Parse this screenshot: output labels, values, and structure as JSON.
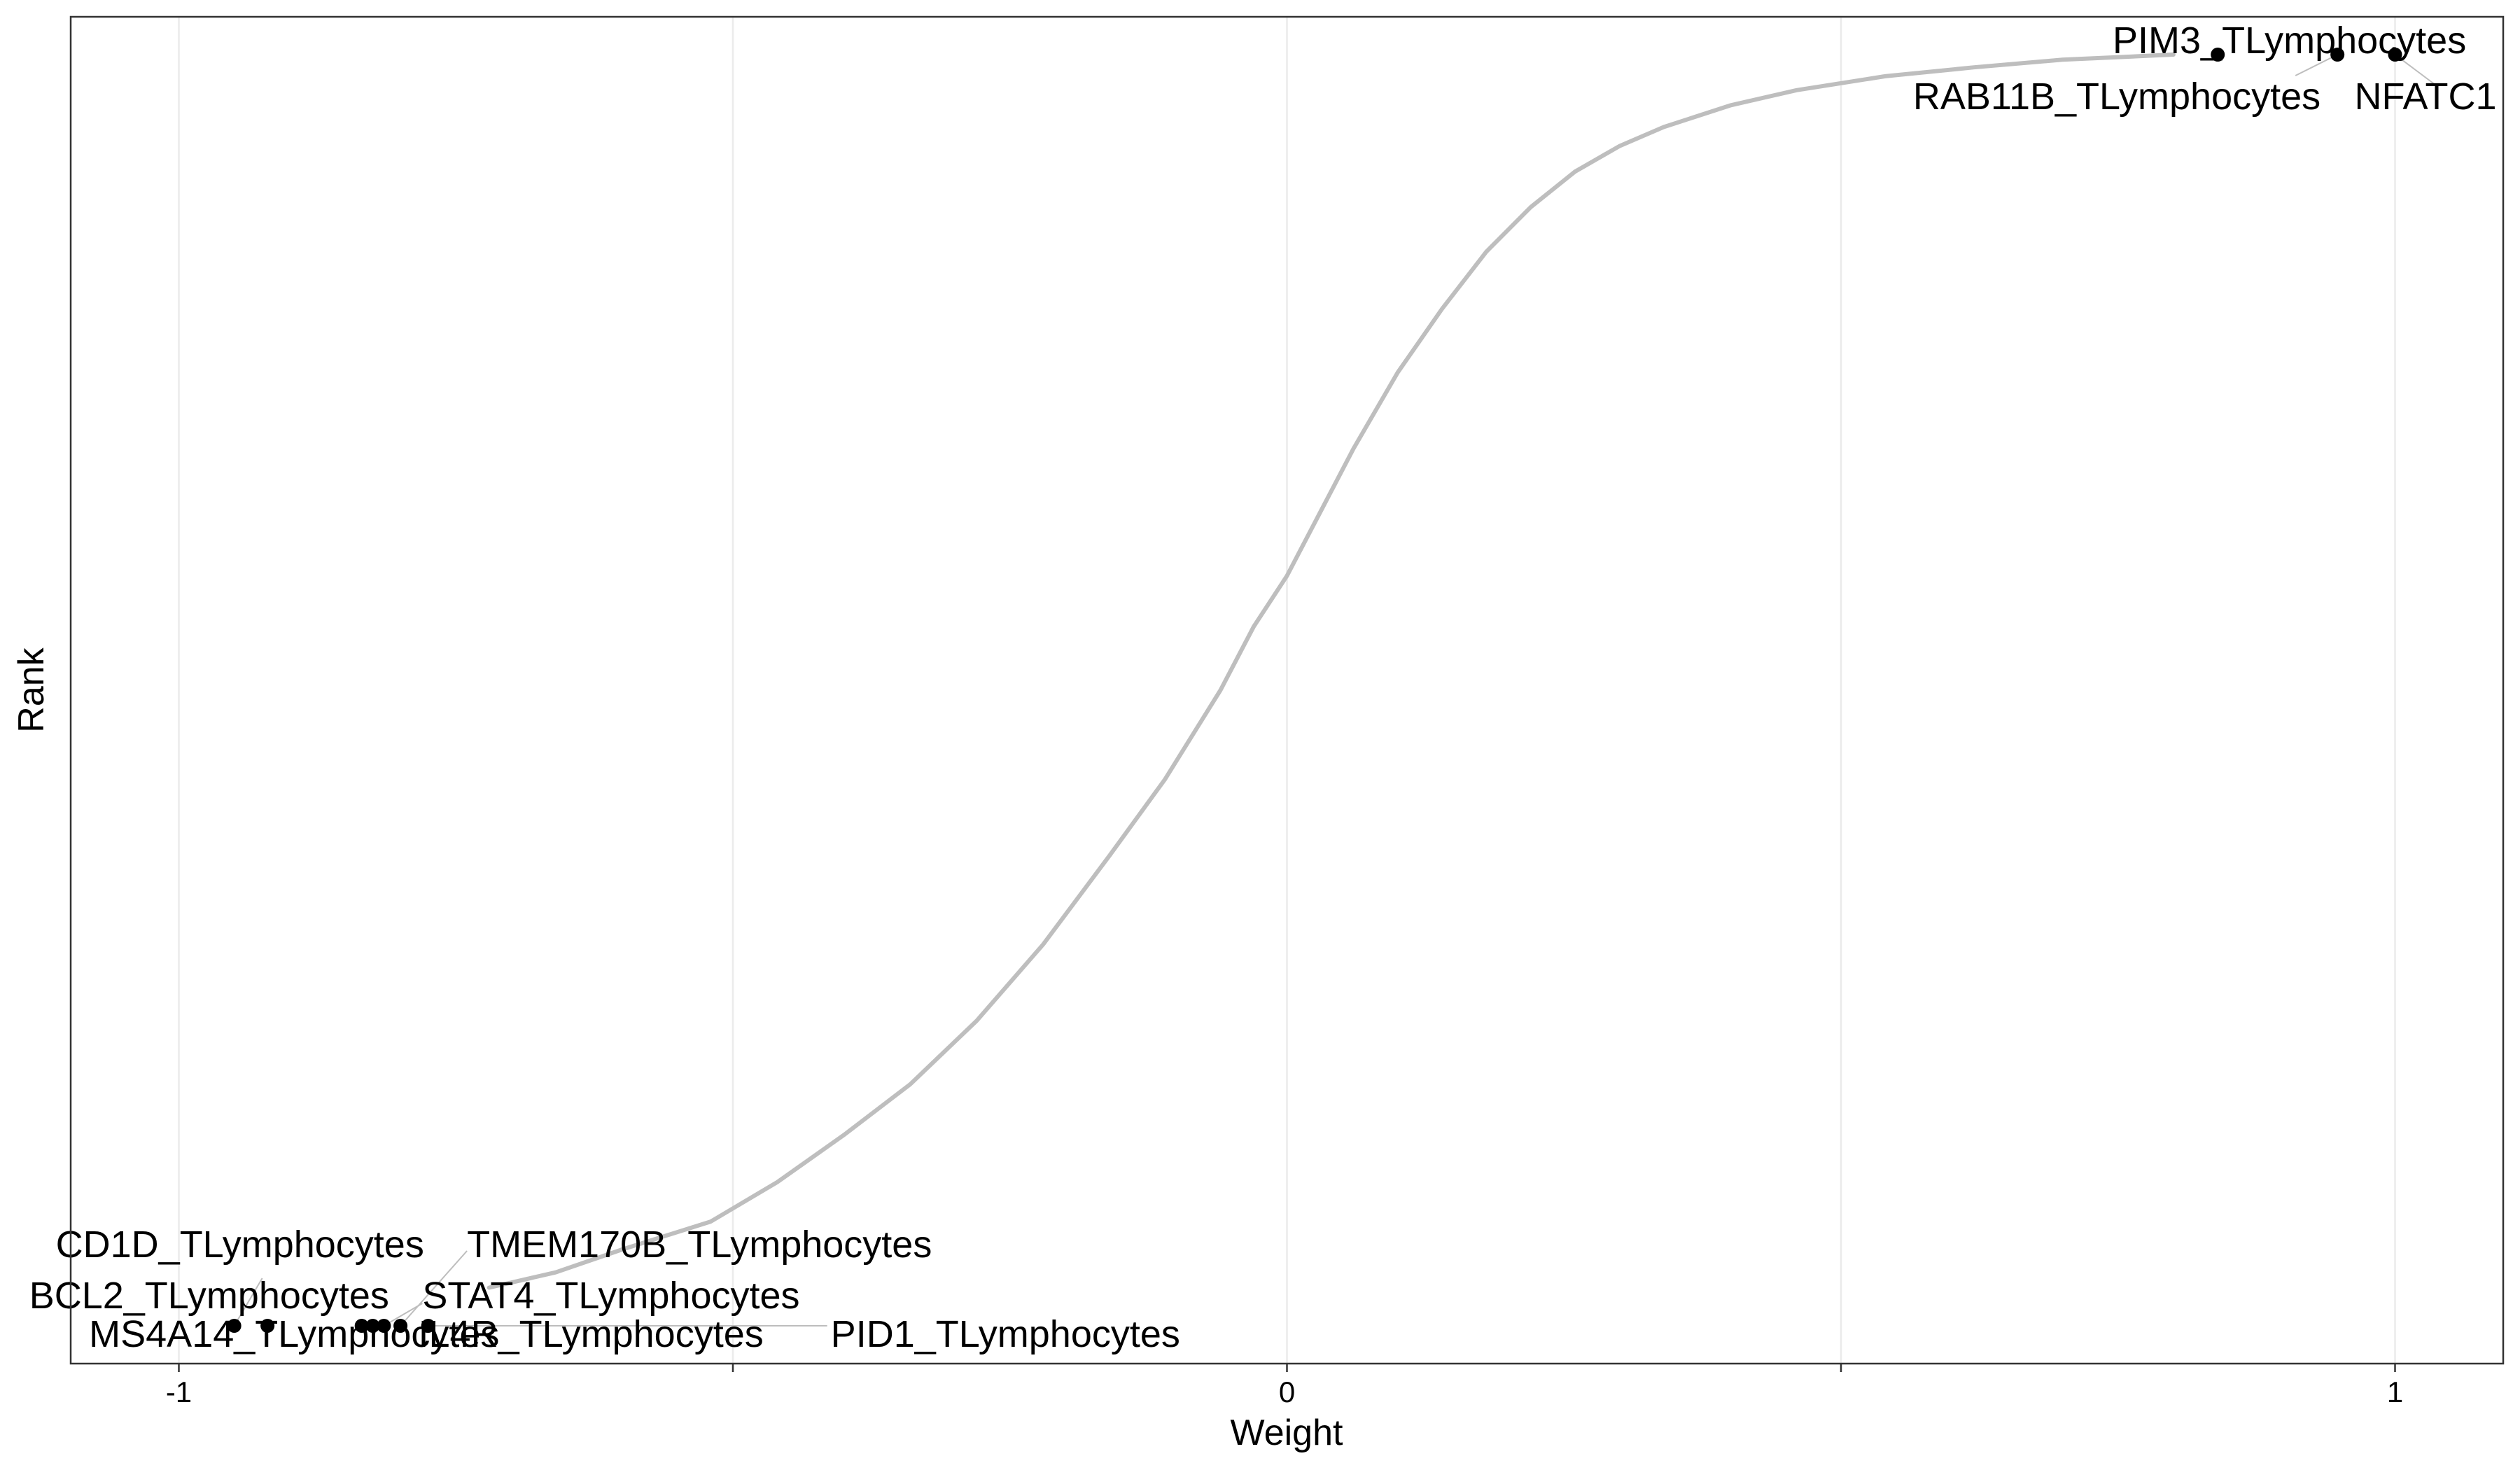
{
  "chart_data": {
    "type": "scatter",
    "title": "",
    "xlabel": "Weight",
    "ylabel": "Rank",
    "xlim": [
      -1.0976,
      1.0976
    ],
    "ylim": [
      0,
      1
    ],
    "x_ticks": [
      -1,
      -0.5,
      0,
      0.5,
      1
    ],
    "x_tick_labels": [
      "-1",
      "",
      "0",
      "",
      "1"
    ],
    "y_tick_labels": [],
    "grid": "vertical",
    "colors": {
      "curve": "#bebebe",
      "highlight": "#000000",
      "grid": "#ebebeb",
      "panel_border": "#333333"
    },
    "curve": {
      "x": [
        -0.72,
        -0.66,
        -0.6,
        -0.52,
        -0.46,
        -0.4,
        -0.34,
        -0.28,
        -0.22,
        -0.16,
        -0.11,
        -0.06,
        -0.03,
        0.0,
        0.03,
        0.06,
        0.1,
        0.14,
        0.18,
        0.22,
        0.26,
        0.3,
        0.34,
        0.4,
        0.46,
        0.54,
        0.62,
        0.7,
        0.8
      ],
      "y": [
        0.03,
        0.042,
        0.06,
        0.082,
        0.113,
        0.15,
        0.19,
        0.24,
        0.3,
        0.37,
        0.43,
        0.5,
        0.55,
        0.59,
        0.64,
        0.69,
        0.75,
        0.8,
        0.845,
        0.88,
        0.908,
        0.928,
        0.943,
        0.96,
        0.972,
        0.983,
        0.99,
        0.996,
        1.0
      ]
    },
    "highlighted": [
      {
        "label": "MS4A14_TLymphocytes",
        "x": -0.92,
        "y": 0.0
      },
      {
        "label": "CD1D_TLymphocytes",
        "x": -0.95,
        "y": 0.0
      },
      {
        "label": "BCL2_TLymphocytes",
        "x": -0.835,
        "y": 0.0
      },
      {
        "label": "IL4R_TLymphocytes",
        "x": -0.825,
        "y": 0.0
      },
      {
        "label": "STAT4_TLymphocytes",
        "x": -0.815,
        "y": 0.0
      },
      {
        "label": "TMEM170B_TLymphocytes",
        "x": -0.8,
        "y": 0.0
      },
      {
        "label": "PID1_TLymphocytes",
        "x": -0.775,
        "y": 0.0
      },
      {
        "label": "PIM3_TLymphocytes",
        "x": 0.84,
        "y": 1.0
      },
      {
        "label": "RAB11B_TLymphocytes",
        "x": 0.948,
        "y": 1.0
      },
      {
        "label": "NFATC1",
        "x": 1.0,
        "y": 1.0
      }
    ]
  }
}
